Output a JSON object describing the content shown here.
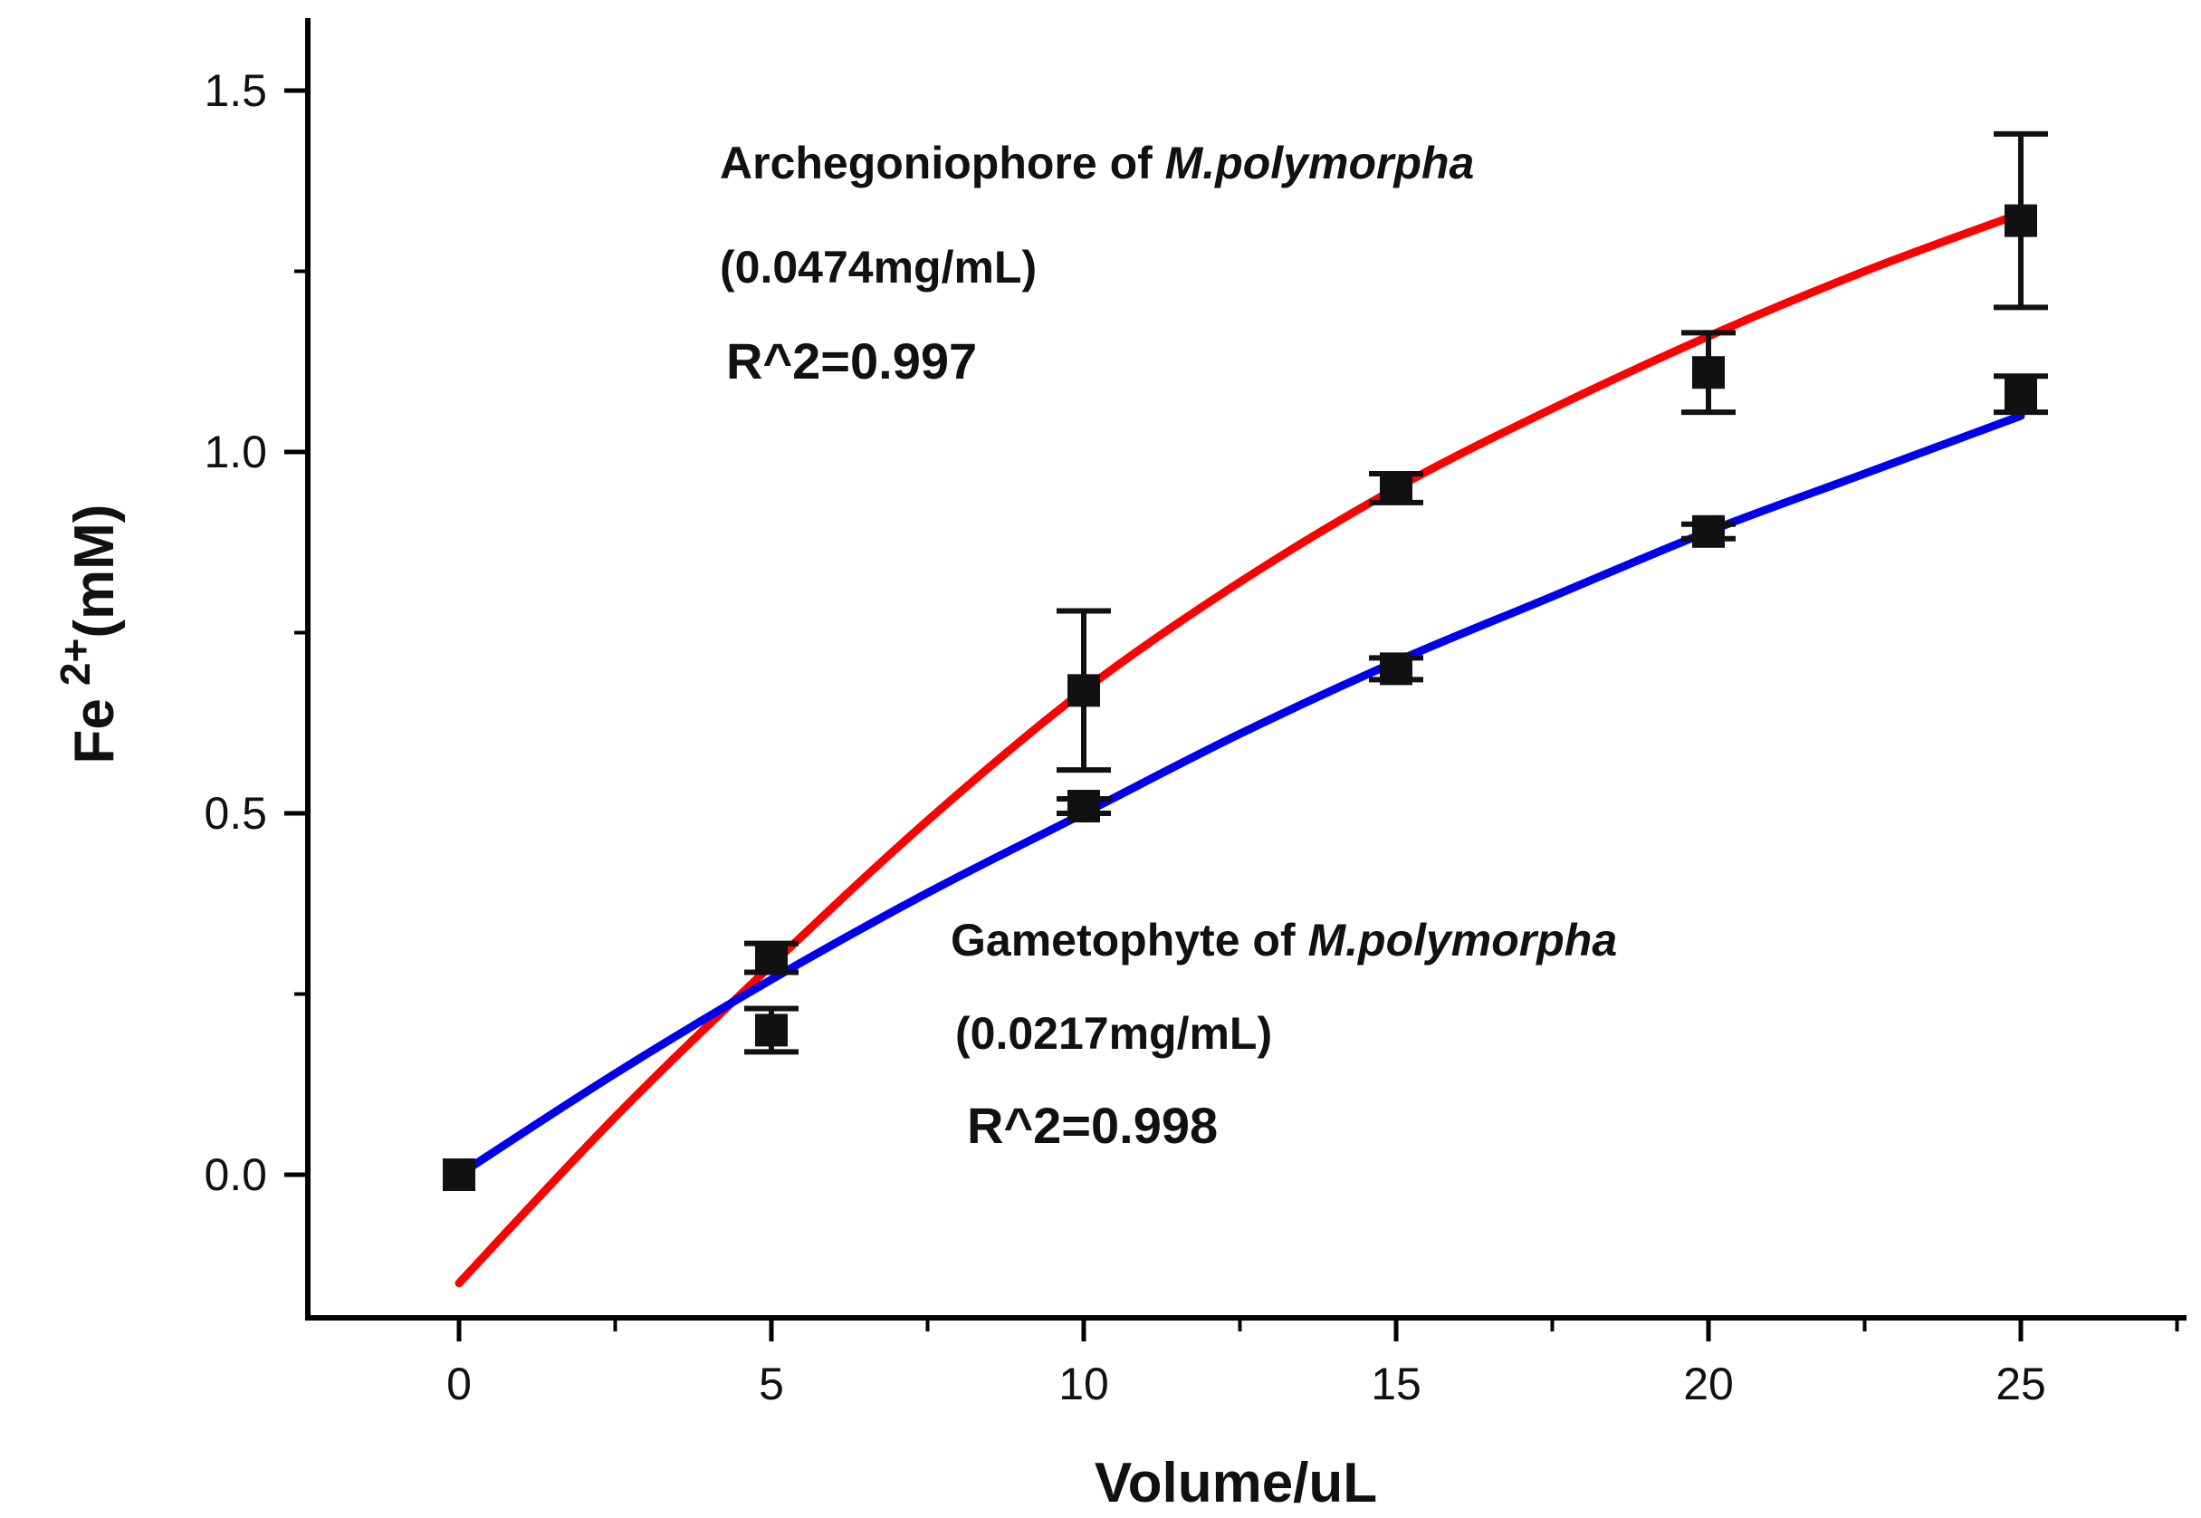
{
  "chart_data": {
    "type": "scatter",
    "xlabel": "Volume/uL",
    "ylabel": {
      "base": "Fe",
      "sup": "2+",
      "unit": "(mM)"
    },
    "xlim": [
      -5,
      27.5
    ],
    "ylim": [
      -0.2,
      1.6
    ],
    "x_ticks": [
      0,
      5,
      10,
      15,
      20,
      25
    ],
    "y_ticks": [
      0.0,
      0.5,
      1.0,
      1.5
    ],
    "x_tick_labels": [
      "0",
      "5",
      "10",
      "15",
      "20",
      "25"
    ],
    "y_tick_labels": [
      "0.0",
      "0.5",
      "1.0",
      "1.5"
    ],
    "grid": false,
    "series": [
      {
        "key": "archegoniophore",
        "color": "#ff0000",
        "points": [
          {
            "x": 0,
            "y": 0.0,
            "err": 0.0
          },
          {
            "x": 5,
            "y": 0.3,
            "err": 0.02
          },
          {
            "x": 10,
            "y": 0.67,
            "err": 0.11
          },
          {
            "x": 15,
            "y": 0.95,
            "err": 0.02
          },
          {
            "x": 20,
            "y": 1.11,
            "err": 0.055
          },
          {
            "x": 25,
            "y": 1.32,
            "err": 0.12
          }
        ],
        "fit": [
          {
            "x": 0,
            "y": -0.15
          },
          {
            "x": 2.5,
            "y": 0.08
          },
          {
            "x": 5,
            "y": 0.29
          },
          {
            "x": 7.5,
            "y": 0.49
          },
          {
            "x": 10,
            "y": 0.67
          },
          {
            "x": 12.5,
            "y": 0.82
          },
          {
            "x": 15,
            "y": 0.95
          },
          {
            "x": 17.5,
            "y": 1.06
          },
          {
            "x": 20,
            "y": 1.16
          },
          {
            "x": 22.5,
            "y": 1.25
          },
          {
            "x": 25,
            "y": 1.33
          }
        ]
      },
      {
        "key": "gametophyte",
        "color": "#0000ee",
        "points": [
          {
            "x": 0,
            "y": 0.0,
            "err": 0.0
          },
          {
            "x": 5,
            "y": 0.2,
            "err": 0.03
          },
          {
            "x": 10,
            "y": 0.51,
            "err": 0.01
          },
          {
            "x": 15,
            "y": 0.7,
            "err": 0.015
          },
          {
            "x": 20,
            "y": 0.89,
            "err": 0.01
          },
          {
            "x": 25,
            "y": 1.08,
            "err": 0.025
          }
        ],
        "fit": [
          {
            "x": 0,
            "y": 0.0
          },
          {
            "x": 2.5,
            "y": 0.14
          },
          {
            "x": 5,
            "y": 0.27
          },
          {
            "x": 7.5,
            "y": 0.39
          },
          {
            "x": 10,
            "y": 0.5
          },
          {
            "x": 12.5,
            "y": 0.61
          },
          {
            "x": 15,
            "y": 0.71
          },
          {
            "x": 17.5,
            "y": 0.8
          },
          {
            "x": 20,
            "y": 0.89
          },
          {
            "x": 22.5,
            "y": 0.97
          },
          {
            "x": 25,
            "y": 1.05
          }
        ]
      }
    ],
    "annotations": [
      {
        "key": "archegoniophore",
        "name_prefix": "Archegoniophore of ",
        "name_italic": "M.polymorpha",
        "concentration": "(0.0474mg/mL)",
        "r2": "R^2=0.997"
      },
      {
        "key": "gametophyte",
        "name_prefix": "Gametophyte of ",
        "name_italic": "M.polymorpha",
        "concentration": "(0.0217mg/mL)",
        "r2": "R^2=0.998"
      }
    ]
  }
}
